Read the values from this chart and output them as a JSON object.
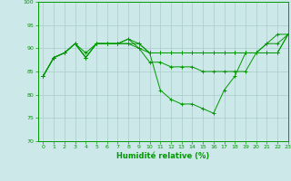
{
  "xlabel": "Humidité relative (%)",
  "background_color": "#cce8e8",
  "grid_color": "#aacccc",
  "line_color": "#009900",
  "ylim": [
    70,
    100
  ],
  "xlim": [
    -0.5,
    23
  ],
  "yticks": [
    70,
    75,
    80,
    85,
    90,
    95,
    100
  ],
  "xticks": [
    0,
    1,
    2,
    3,
    4,
    5,
    6,
    7,
    8,
    9,
    10,
    11,
    12,
    13,
    14,
    15,
    16,
    17,
    18,
    19,
    20,
    21,
    22,
    23
  ],
  "series": [
    {
      "x": [
        0,
        1,
        2,
        3,
        4,
        5,
        6,
        7,
        8,
        9,
        10,
        11,
        12,
        13,
        14,
        15,
        16,
        17,
        18,
        19,
        20,
        21,
        22,
        23
      ],
      "y": [
        84,
        88,
        89,
        91,
        89,
        91,
        91,
        91,
        92,
        90,
        89,
        81,
        79,
        78,
        78,
        77,
        76,
        81,
        84,
        89,
        89,
        91,
        93,
        93
      ]
    },
    {
      "x": [
        0,
        1,
        2,
        3,
        4,
        5,
        6,
        7,
        8,
        9,
        10,
        11,
        12,
        13,
        14,
        15,
        16,
        17,
        18,
        19,
        20,
        21,
        22,
        23
      ],
      "y": [
        84,
        88,
        89,
        91,
        88,
        91,
        91,
        91,
        91,
        90,
        87,
        87,
        86,
        86,
        86,
        85,
        85,
        85,
        85,
        85,
        89,
        89,
        89,
        93
      ]
    },
    {
      "x": [
        0,
        1,
        2,
        3,
        4,
        5,
        6,
        7,
        8,
        9,
        10,
        11,
        12,
        13,
        14,
        15,
        16,
        17,
        18,
        19,
        20,
        21,
        22,
        23
      ],
      "y": [
        84,
        88,
        89,
        91,
        88,
        91,
        91,
        91,
        91,
        91,
        89,
        89,
        89,
        89,
        89,
        89,
        89,
        89,
        89,
        89,
        89,
        89,
        89,
        93
      ]
    },
    {
      "x": [
        0,
        1,
        2,
        3,
        4,
        5,
        6,
        7,
        8,
        9,
        10,
        11,
        12,
        13,
        14,
        15,
        16,
        17,
        18,
        19,
        20,
        21,
        22,
        23
      ],
      "y": [
        84,
        88,
        89,
        91,
        88,
        91,
        91,
        91,
        92,
        91,
        89,
        89,
        89,
        89,
        89,
        89,
        89,
        89,
        89,
        89,
        89,
        91,
        91,
        93
      ]
    }
  ],
  "xlabel_fontsize": 6,
  "tick_fontsize": 4.5,
  "xlabel_fontweight": "bold"
}
